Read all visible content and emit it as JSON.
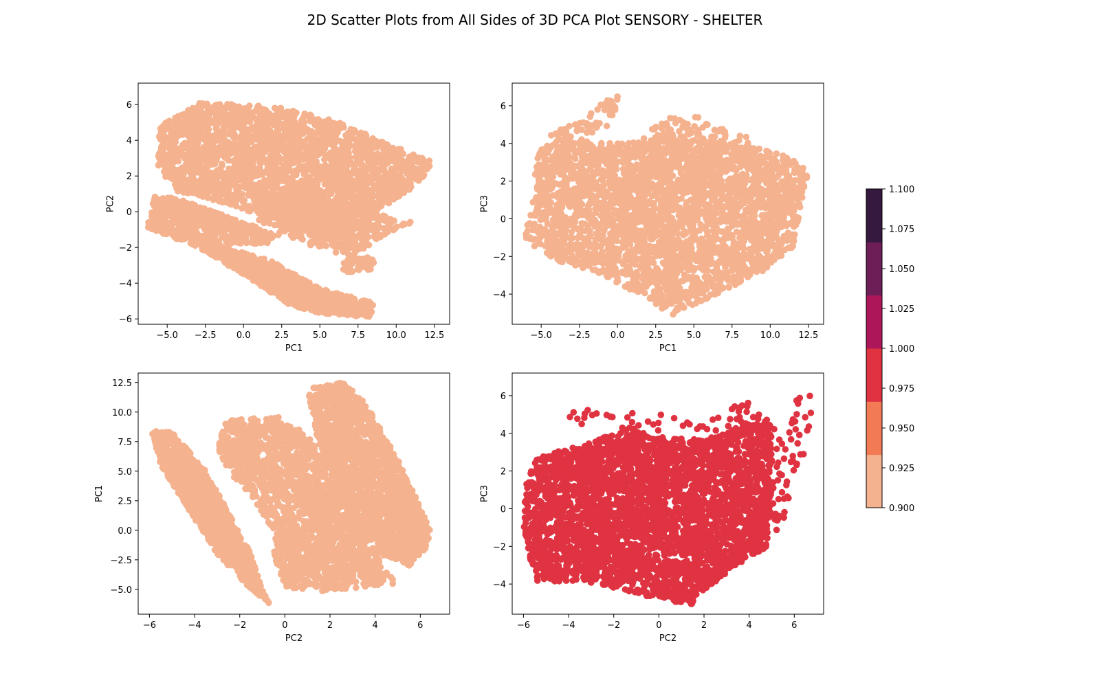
{
  "figure": {
    "title": "2D Scatter Plots from All Sides of 3D PCA Plot SENSORY - SHELTER"
  },
  "chart_data": [
    {
      "type": "scatter",
      "xlabel": "PC1",
      "ylabel": "PC2",
      "xlim": [
        -6.9,
        13.5
      ],
      "ylim": [
        -6.3,
        7.2
      ],
      "xticks": [
        -5.0,
        -2.5,
        0.0,
        2.5,
        5.0,
        7.5,
        10.0,
        12.5
      ],
      "yticks": [
        -6,
        -4,
        -2,
        0,
        2,
        4,
        6
      ],
      "color": "#f5b28f",
      "grid": false,
      "series": [
        {
          "regions": [
            {
              "polygon": [
                [
                  -5.5,
                  4.8
                ],
                [
                  -3,
                  6.1
                ],
                [
                  2,
                  5.9
                ],
                [
                  6,
                  5.1
                ],
                [
                  10,
                  3.6
                ],
                [
                  12.4,
                  2.8
                ],
                [
                  11.5,
                  1.6
                ],
                [
                  8.5,
                  -0.1
                ],
                [
                  6,
                  -1.8
                ],
                [
                  3,
                  -0.8
                ],
                [
                  -0.5,
                  0.3
                ],
                [
                  -4.5,
                  1.2
                ],
                [
                  -5.6,
                  2.5
                ]
              ],
              "count": 2600
            },
            {
              "polygon": [
                [
                  -6.3,
                  -0.8
                ],
                [
                  -5.8,
                  0.9
                ],
                [
                  -4,
                  0.7
                ],
                [
                  -1,
                  -0.3
                ],
                [
                  2,
                  -1.2
                ],
                [
                  3,
                  -0.9
                ],
                [
                  1.5,
                  -1.8
                ],
                [
                  -2,
                  -1.8
                ],
                [
                  -5,
                  -1.2
                ]
              ],
              "count": 500
            },
            {
              "polygon": [
                [
                  -6.3,
                  -0.9
                ],
                [
                  -6,
                  -0.5
                ],
                [
                  -2,
                  -1.8
                ],
                [
                  2,
                  -2.8
                ],
                [
                  5,
                  -4.3
                ],
                [
                  8.5,
                  -5.1
                ],
                [
                  8.4,
                  -5.9
                ],
                [
                  5,
                  -5.7
                ],
                [
                  3,
                  -5.2
                ],
                [
                  0,
                  -3.5
                ],
                [
                  -3,
                  -2
                ]
              ],
              "count": 900
            },
            {
              "polygon": [
                [
                  0.5,
                  1.2
                ],
                [
                  4,
                  0.8
                ],
                [
                  8,
                  0.2
                ],
                [
                  11,
                  -0.8
                ],
                [
                  11,
                  -0.5
                ],
                [
                  7,
                  -2.5
                ],
                [
                  4,
                  -1.8
                ],
                [
                  1,
                  -0.5
                ]
              ],
              "count": 500
            },
            {
              "polygon": [
                [
                  6.5,
                  -2.7
                ],
                [
                  8.6,
                  -2.5
                ],
                [
                  8.6,
                  -3.3
                ],
                [
                  6.5,
                  -3.4
                ]
              ],
              "count": 40
            }
          ]
        }
      ]
    },
    {
      "type": "scatter",
      "xlabel": "PC1",
      "ylabel": "PC3",
      "xlim": [
        -6.9,
        13.5
      ],
      "ylim": [
        -5.6,
        7.2
      ],
      "xticks": [
        -5.0,
        -2.5,
        0.0,
        2.5,
        5.0,
        7.5,
        10.0,
        12.5
      ],
      "yticks": [
        -4,
        -2,
        0,
        2,
        4,
        6
      ],
      "color": "#f5b28f",
      "grid": false,
      "series": [
        {
          "regions": [
            {
              "polygon": [
                [
                  -5.8,
                  0
                ],
                [
                  -5.2,
                  3.6
                ],
                [
                  -4,
                  4.2
                ],
                [
                  0,
                  4
                ],
                [
                  5,
                  4.2
                ],
                [
                  9,
                  3.8
                ],
                [
                  11.5,
                  3.2
                ],
                [
                  12.5,
                  2.6
                ],
                [
                  11.5,
                  -1.5
                ],
                [
                  9.5,
                  -2.8
                ],
                [
                  6,
                  -4.2
                ],
                [
                  3.6,
                  -5.1
                ],
                [
                  2,
                  -4.3
                ],
                [
                  -1,
                  -3
                ],
                [
                  -4,
                  -2.2
                ],
                [
                  -6.2,
                  -1.1
                ]
              ],
              "count": 3200
            },
            {
              "polygon": [
                [
                  -4.5,
                  4.5
                ],
                [
                  -2,
                  5.3
                ],
                [
                  -1,
                  6.4
                ],
                [
                  0,
                  6.7
                ],
                [
                  0,
                  5.2
                ],
                [
                  -2,
                  4.2
                ],
                [
                  -4,
                  4
                ]
              ],
              "count": 60
            },
            {
              "polygon": [
                [
                  1.5,
                  4.2
                ],
                [
                  3,
                  5.3
                ],
                [
                  5,
                  5.5
                ],
                [
                  7,
                  4.9
                ],
                [
                  9.5,
                  4
                ],
                [
                  8,
                  4
                ],
                [
                  4,
                  4
                ]
              ],
              "count": 80
            }
          ]
        }
      ]
    },
    {
      "type": "scatter",
      "xlabel": "PC2",
      "ylabel": "PC1",
      "xlim": [
        -6.5,
        7.3
      ],
      "ylim": [
        -7.1,
        13.3
      ],
      "xticks": [
        -6,
        -4,
        -2,
        0,
        2,
        4,
        6
      ],
      "yticks": [
        -5.0,
        -2.5,
        0.0,
        2.5,
        5.0,
        7.5,
        10.0,
        12.5
      ],
      "color": "#f5b28f",
      "grid": false,
      "series": [
        {
          "regions": [
            {
              "polygon": [
                [
                  -5.9,
                  8.4
                ],
                [
                  -5,
                  8.3
                ],
                [
                  -3.5,
                  5
                ],
                [
                  -2.5,
                  1.5
                ],
                [
                  -1.5,
                  -2
                ],
                [
                  -1,
                  -5
                ],
                [
                  -0.7,
                  -6.2
                ],
                [
                  -1.5,
                  -5
                ],
                [
                  -3,
                  -2
                ],
                [
                  -4.5,
                  2.5
                ],
                [
                  -5.5,
                  5.5
                ]
              ],
              "count": 1300
            },
            {
              "polygon": [
                [
                  -2.6,
                  9.3
                ],
                [
                  -0.2,
                  9.6
                ],
                [
                  1,
                  8
                ],
                [
                  2,
                  5
                ],
                [
                  3,
                  2
                ],
                [
                  4,
                  -2
                ],
                [
                  4.9,
                  -4.5
                ],
                [
                  1.5,
                  -5.2
                ],
                [
                  0,
                  -5
                ],
                [
                  -0.5,
                  -2
                ],
                [
                  -0.5,
                  0
                ],
                [
                  -1.5,
                  3
                ],
                [
                  -2.5,
                  5
                ],
                [
                  -3,
                  7
                ]
              ],
              "count": 1800
            },
            {
              "polygon": [
                [
                  1,
                  12
                ],
                [
                  2.5,
                  12.6
                ],
                [
                  3.5,
                  11
                ],
                [
                  5,
                  6
                ],
                [
                  6.5,
                  0
                ],
                [
                  6.3,
                  -1.5
                ],
                [
                  5.5,
                  -3
                ],
                [
                  4,
                  -2
                ],
                [
                  2.5,
                  3
                ],
                [
                  1.5,
                  7
                ]
              ],
              "count": 1600
            }
          ]
        }
      ]
    },
    {
      "type": "scatter",
      "xlabel": "PC2",
      "ylabel": "PC3",
      "xlim": [
        -6.5,
        7.3
      ],
      "ylim": [
        -5.6,
        7.2
      ],
      "xticks": [
        -6,
        -4,
        -2,
        0,
        2,
        4,
        6
      ],
      "yticks": [
        -4,
        -2,
        0,
        2,
        4,
        6
      ],
      "color": "#e03342",
      "grid": false,
      "series": [
        {
          "regions": [
            {
              "polygon": [
                [
                  -5.9,
                  1.5
                ],
                [
                  -5.5,
                  2.7
                ],
                [
                  -3,
                  3.5
                ],
                [
                  -1.5,
                  4.3
                ],
                [
                  0,
                  3.8
                ],
                [
                  2,
                  3.7
                ],
                [
                  4,
                  4.5
                ],
                [
                  5,
                  4.5
                ],
                [
                  5,
                  0
                ],
                [
                  4.8,
                  -2
                ],
                [
                  3.5,
                  -3
                ],
                [
                  2,
                  -4.3
                ],
                [
                  1.5,
                  -5.1
                ],
                [
                  0,
                  -4.8
                ],
                [
                  -2,
                  -4.2
                ],
                [
                  -3.5,
                  -3.8
                ],
                [
                  -5.5,
                  -3.9
                ],
                [
                  -6,
                  -1
                ]
              ],
              "count": 3600
            },
            {
              "polygon": [
                [
                  -4,
                  5.2
                ],
                [
                  -2,
                  5.4
                ],
                [
                  0,
                  5
                ],
                [
                  2,
                  4.7
                ],
                [
                  4,
                  5.9
                ],
                [
                  5.5,
                  4
                ],
                [
                  6.2,
                  6.6
                ],
                [
                  6.7,
                  6.6
                ],
                [
                  6.8,
                  3.7
                ],
                [
                  6,
                  2
                ],
                [
                  5.4,
                  -1.9
                ],
                [
                  4.8,
                  -0.5
                ],
                [
                  5,
                  4
                ],
                [
                  4,
                  4.2
                ],
                [
                  1,
                  4
                ],
                [
                  -2,
                  4.2
                ],
                [
                  -4,
                  4.6
                ]
              ],
              "count": 120
            }
          ]
        }
      ]
    }
  ],
  "colorbar": {
    "ticks": [
      "1.100",
      "1.075",
      "1.050",
      "1.025",
      "1.000",
      "0.975",
      "0.950",
      "0.925",
      "0.900"
    ],
    "range": [
      0.9,
      1.1
    ],
    "colors": [
      "#f5b28f",
      "#f27a55",
      "#e03342",
      "#ad1759",
      "#6d1e56",
      "#35193e"
    ]
  }
}
